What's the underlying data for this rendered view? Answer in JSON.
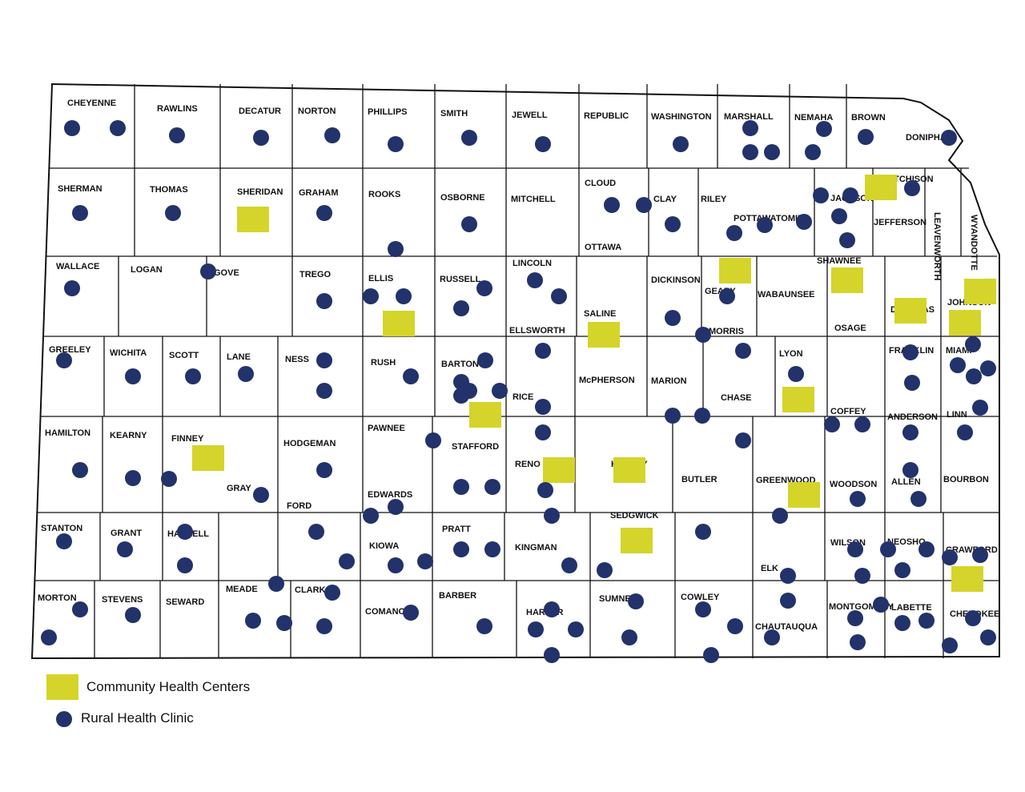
{
  "counties": [
    "CHEYENNE",
    "RAWLINS",
    "DECATUR",
    "NORTON",
    "PHILLIPS",
    "SMITH",
    "JEWELL",
    "REPUBLIC",
    "WASHINGTON",
    "MARSHALL",
    "NEMAHA",
    "BROWN",
    "DONIPHAN",
    "SHERMAN",
    "THOMAS",
    "SHERIDAN",
    "GRAHAM",
    "ROOKS",
    "OSBORNE",
    "MITCHELL",
    "CLOUD",
    "CLAY",
    "RILEY",
    "POTTAWATOMIE",
    "JACKSON",
    "ATCHISON",
    "JEFFERSON",
    "LEAVENWORTH",
    "WYANDOTTE",
    "WALLACE",
    "LOGAN",
    "GOVE",
    "TREGO",
    "ELLIS",
    "RUSSELL",
    "LINCOLN",
    "OTTAWA",
    "DICKINSON",
    "GEARY",
    "WABAUNSEE",
    "SHAWNEE",
    "DOUGLAS",
    "JOHNSON",
    "GREELEY",
    "WICHITA",
    "SCOTT",
    "LANE",
    "NESS",
    "RUSH",
    "BARTON",
    "ELLSWORTH",
    "SALINE",
    "McPHERSON",
    "MARION",
    "MORRIS",
    "LYON",
    "CHASE",
    "OSAGE",
    "FRANKLIN",
    "MIAMI",
    "HAMILTON",
    "KEARNY",
    "FINNEY",
    "HODGEMAN",
    "PAWNEE",
    "STAFFORD",
    "RICE",
    "COFFEY",
    "ANDERSON",
    "LINN",
    "GRAY",
    "FORD",
    "EDWARDS",
    "RENO",
    "HARVEY",
    "BUTLER",
    "GREENWOOD",
    "WOODSON",
    "ALLEN",
    "BOURBON",
    "SEDGWICK",
    "PRATT",
    "KINGMAN",
    "STANTON",
    "GRANT",
    "HASKELL",
    "KIOWA",
    "WILSON",
    "NEOSHO",
    "CRAWFORD",
    "ELK",
    "MORTON",
    "STEVENS",
    "SEWARD",
    "MEADE",
    "CLARK",
    "COMANCHE",
    "BARBER",
    "HARPER",
    "SUMNER",
    "COWLEY",
    "CHAUTAUQUA",
    "MONTGOMERY",
    "LABETTE",
    "CHEROKEE"
  ],
  "legend": {
    "community_health_centers": "Community Health Centers",
    "rural_health_clinic": "Rural Health Clinic"
  }
}
